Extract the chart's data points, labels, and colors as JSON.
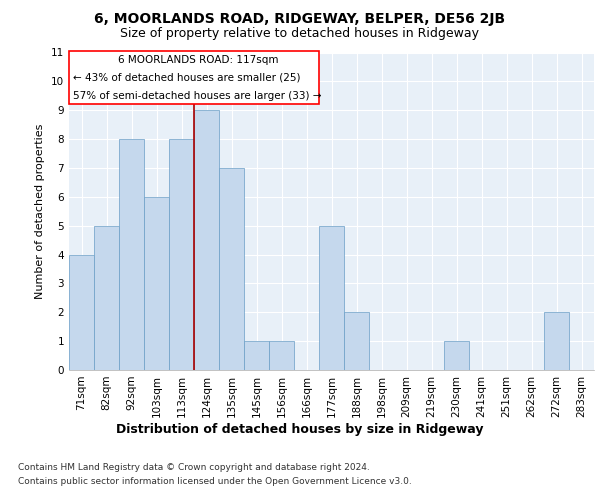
{
  "title1": "6, MOORLANDS ROAD, RIDGEWAY, BELPER, DE56 2JB",
  "title2": "Size of property relative to detached houses in Ridgeway",
  "xlabel": "Distribution of detached houses by size in Ridgeway",
  "ylabel": "Number of detached properties",
  "categories": [
    "71sqm",
    "82sqm",
    "92sqm",
    "103sqm",
    "113sqm",
    "124sqm",
    "135sqm",
    "145sqm",
    "156sqm",
    "166sqm",
    "177sqm",
    "188sqm",
    "198sqm",
    "209sqm",
    "219sqm",
    "230sqm",
    "241sqm",
    "251sqm",
    "262sqm",
    "272sqm",
    "283sqm"
  ],
  "values": [
    4,
    5,
    8,
    6,
    8,
    9,
    7,
    1,
    1,
    0,
    5,
    2,
    0,
    0,
    0,
    1,
    0,
    0,
    0,
    2,
    0
  ],
  "bar_color": "#c5d8ed",
  "bar_edge_color": "#6a9ec6",
  "ylim": [
    0,
    11
  ],
  "yticks": [
    0,
    1,
    2,
    3,
    4,
    5,
    6,
    7,
    8,
    9,
    10,
    11
  ],
  "property_line_index": 5,
  "annotation_line1": "6 MOORLANDS ROAD: 117sqm",
  "annotation_line2": "← 43% of detached houses are smaller (25)",
  "annotation_line3": "57% of semi-detached houses are larger (33) →",
  "footnote1": "Contains HM Land Registry data © Crown copyright and database right 2024.",
  "footnote2": "Contains public sector information licensed under the Open Government Licence v3.0.",
  "background_color": "#e8f0f8",
  "grid_color": "#ffffff",
  "title1_fontsize": 10,
  "title2_fontsize": 9,
  "xlabel_fontsize": 9,
  "ylabel_fontsize": 8,
  "tick_fontsize": 7.5,
  "footnote_fontsize": 6.5,
  "ann_fontsize": 7.5
}
